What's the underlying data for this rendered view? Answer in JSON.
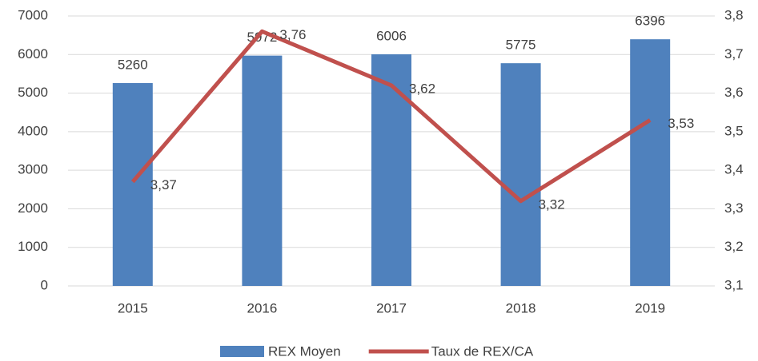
{
  "chart_data": {
    "type": "bar",
    "categories": [
      "2015",
      "2016",
      "2017",
      "2018",
      "2019"
    ],
    "series": [
      {
        "name": "REX Moyen",
        "type": "bar",
        "color": "#4f81bd",
        "values": [
          5260,
          5972,
          6006,
          5775,
          6396
        ]
      },
      {
        "name": "Taux de REX/CA",
        "type": "line",
        "axis": "y2",
        "color": "#c0504d",
        "values": [
          3.37,
          3.76,
          3.62,
          3.32,
          3.53
        ],
        "value_labels": [
          "3,37",
          "3,76",
          "3,62",
          "3,32",
          "3,53"
        ]
      }
    ],
    "ylim": [
      0,
      7000
    ],
    "yticks": [
      0,
      1000,
      2000,
      3000,
      4000,
      5000,
      6000,
      7000
    ],
    "y2lim": [
      3.1,
      3.8
    ],
    "y2ticks": [
      {
        "value": 3.1,
        "label": "3,1"
      },
      {
        "value": 3.2,
        "label": "3,2"
      },
      {
        "value": 3.3,
        "label": "3,3"
      },
      {
        "value": 3.4,
        "label": "3,4"
      },
      {
        "value": 3.5,
        "label": "3,5"
      },
      {
        "value": 3.6,
        "label": "3,6"
      },
      {
        "value": 3.7,
        "label": "3,7"
      },
      {
        "value": 3.8,
        "label": "3,8"
      }
    ],
    "grid": true,
    "legend": "bottom"
  }
}
